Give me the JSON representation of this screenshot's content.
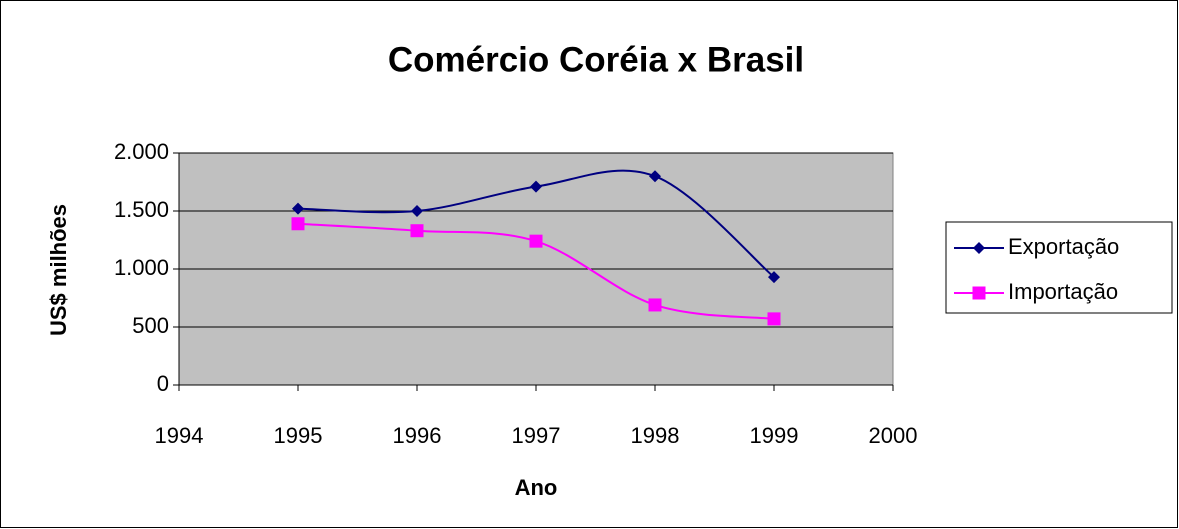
{
  "chart_data": {
    "type": "line",
    "title": "Comércio Coréia x Brasil",
    "x_label": "Ano",
    "y_label": "US$ milhões",
    "x": [
      1995,
      1996,
      1997,
      1998,
      1999
    ],
    "series": [
      {
        "name": "Exportação",
        "color": "#000080",
        "marker": "diamond",
        "values": [
          1520,
          1500,
          1710,
          1800,
          930
        ]
      },
      {
        "name": "Importação",
        "color": "#ff00ff",
        "marker": "square",
        "values": [
          1390,
          1330,
          1240,
          690,
          570
        ]
      }
    ],
    "xlim": [
      1994,
      2000
    ],
    "xticks": [
      1994,
      1995,
      1996,
      1997,
      1998,
      1999,
      2000
    ],
    "ylim": [
      0,
      2000
    ],
    "yticks": [
      0,
      500,
      {
        "value": 1000,
        "label": "1.000"
      },
      {
        "value": 1500,
        "label": "1.500"
      },
      {
        "value": 2000,
        "label": "2.000"
      }
    ],
    "grid": true,
    "smooth": true,
    "legend": "right",
    "plot_background": "#c0c0c0"
  }
}
